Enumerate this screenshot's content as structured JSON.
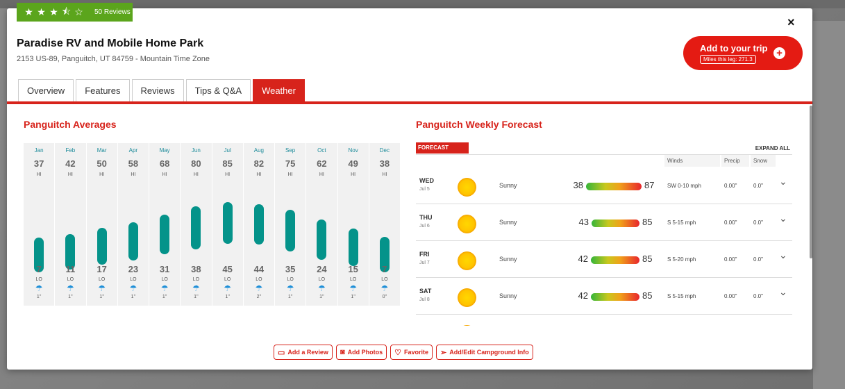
{
  "rating": {
    "stars": 3.5,
    "reviews_label": "50 Reviews"
  },
  "campground": {
    "name": "Paradise RV and Mobile Home Park",
    "address": "2153 US-89, Panguitch, UT 84759 - Mountain Time Zone"
  },
  "trip": {
    "button_label": "Add to your trip",
    "miles_label": "Miles this leg: 271.3",
    "plus": "+"
  },
  "close": "×",
  "tabs": [
    {
      "label": "Overview"
    },
    {
      "label": "Features"
    },
    {
      "label": "Reviews"
    },
    {
      "label": "Tips & Q&A"
    },
    {
      "label": "Weather",
      "active": true
    }
  ],
  "averages": {
    "title": "Panguitch Averages",
    "hi_label": "HI",
    "lo_label": "LO",
    "months": [
      {
        "name": "Jan",
        "hi": "37",
        "lo": "7",
        "rain": "1\""
      },
      {
        "name": "Feb",
        "hi": "42",
        "lo": "11",
        "rain": "1\""
      },
      {
        "name": "Mar",
        "hi": "50",
        "lo": "17",
        "rain": "1\""
      },
      {
        "name": "Apr",
        "hi": "58",
        "lo": "23",
        "rain": "1\""
      },
      {
        "name": "May",
        "hi": "68",
        "lo": "31",
        "rain": "1\""
      },
      {
        "name": "Jun",
        "hi": "80",
        "lo": "38",
        "rain": "1\""
      },
      {
        "name": "Jul",
        "hi": "85",
        "lo": "45",
        "rain": "1\""
      },
      {
        "name": "Aug",
        "hi": "82",
        "lo": "44",
        "rain": "2\""
      },
      {
        "name": "Sep",
        "hi": "75",
        "lo": "35",
        "rain": "1\""
      },
      {
        "name": "Oct",
        "hi": "62",
        "lo": "24",
        "rain": "1\""
      },
      {
        "name": "Nov",
        "hi": "49",
        "lo": "15",
        "rain": "1\""
      },
      {
        "name": "Dec",
        "hi": "38",
        "lo": "7",
        "rain": "0\""
      }
    ]
  },
  "forecast": {
    "title": "Panguitch Weekly Forecast",
    "header": "FORECAST",
    "expand": "EXPAND ALL",
    "columns": {
      "winds": "Winds",
      "precip": "Precip",
      "snow": "Snow"
    },
    "days": [
      {
        "day": "WED",
        "date": "Jul 5",
        "cond": "Sunny",
        "lo": "38",
        "hi": "87",
        "wind": "SW 0-10 mph",
        "precip": "0.00\"",
        "snow": "0.0\""
      },
      {
        "day": "THU",
        "date": "Jul 6",
        "cond": "Sunny",
        "lo": "43",
        "hi": "85",
        "wind": "S 5-15 mph",
        "precip": "0.00\"",
        "snow": "0.0\""
      },
      {
        "day": "FRI",
        "date": "Jul 7",
        "cond": "Sunny",
        "lo": "42",
        "hi": "85",
        "wind": "S 5-20 mph",
        "precip": "0.00\"",
        "snow": "0.0\""
      },
      {
        "day": "SAT",
        "date": "Jul 8",
        "cond": "Sunny",
        "lo": "42",
        "hi": "85",
        "wind": "S 5-15 mph",
        "precip": "0.00\"",
        "snow": "0.0\""
      }
    ]
  },
  "actions": [
    {
      "label": "Add a Review",
      "icon": "review-icon"
    },
    {
      "label": "Add Photos",
      "icon": "camera-icon"
    },
    {
      "label": "Favorite",
      "icon": "heart-icon"
    },
    {
      "label": "Add/Edit Campground Info",
      "icon": "send-icon"
    }
  ]
}
